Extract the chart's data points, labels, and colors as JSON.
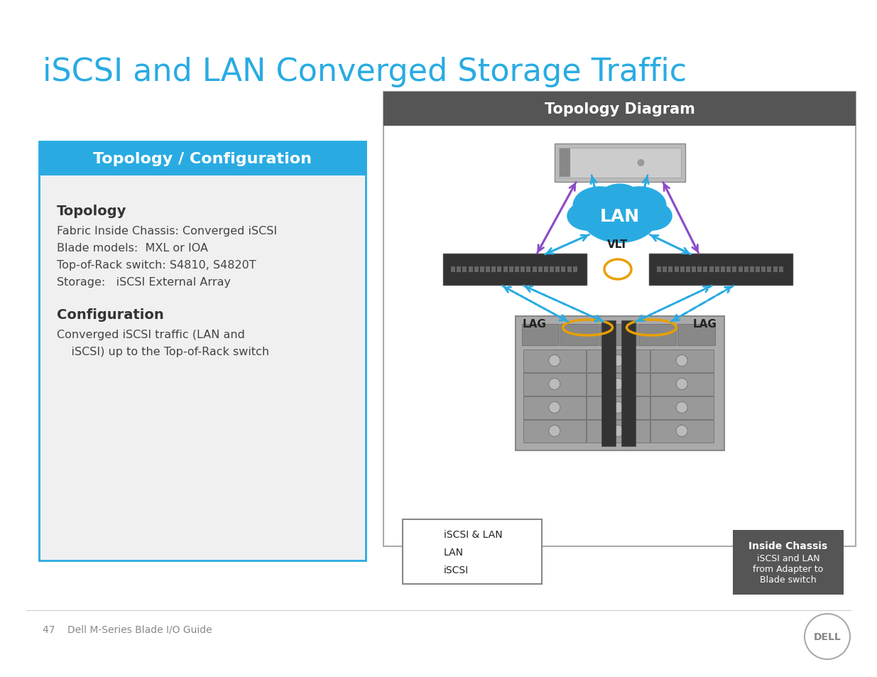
{
  "title": "iSCSI and LAN Converged Storage Traffic",
  "title_color": "#29ABE2",
  "title_fontsize": 32,
  "bg_color": "#FFFFFF",
  "left_panel": {
    "header": "Topology / Configuration",
    "header_bg": "#29ABE2",
    "header_color": "white",
    "body_bg": "#F0F0F0",
    "border_color": "#29ABE2",
    "topology_header": "Topology",
    "topology_lines": [
      "Fabric Inside Chassis: Converged iSCSI",
      "Blade models:  MXL or IOA",
      "Top-of-Rack switch: S4810, S4820T",
      "Storage:   iSCSI External Array"
    ],
    "config_header": "Configuration",
    "config_lines": [
      "Converged iSCSI traffic (LAN and",
      "    iSCSI) up to the Top-of-Rack switch"
    ]
  },
  "right_panel": {
    "header": "Topology Diagram",
    "header_bg": "#555555",
    "header_color": "white",
    "border_color": "#AAAAAA",
    "bg_color": "white"
  },
  "legend": {
    "iscsi_lan_label": "iSCSI & LAN",
    "lan_label": "LAN",
    "iscsi_label": "iSCSI",
    "iscsi_lan_color": "#29ABE2",
    "lan_color": "#29ABE2",
    "iscsi_color": "#8B4CC8"
  },
  "footer_text": "47    Dell M-Series Blade I/O Guide",
  "footer_color": "#888888"
}
